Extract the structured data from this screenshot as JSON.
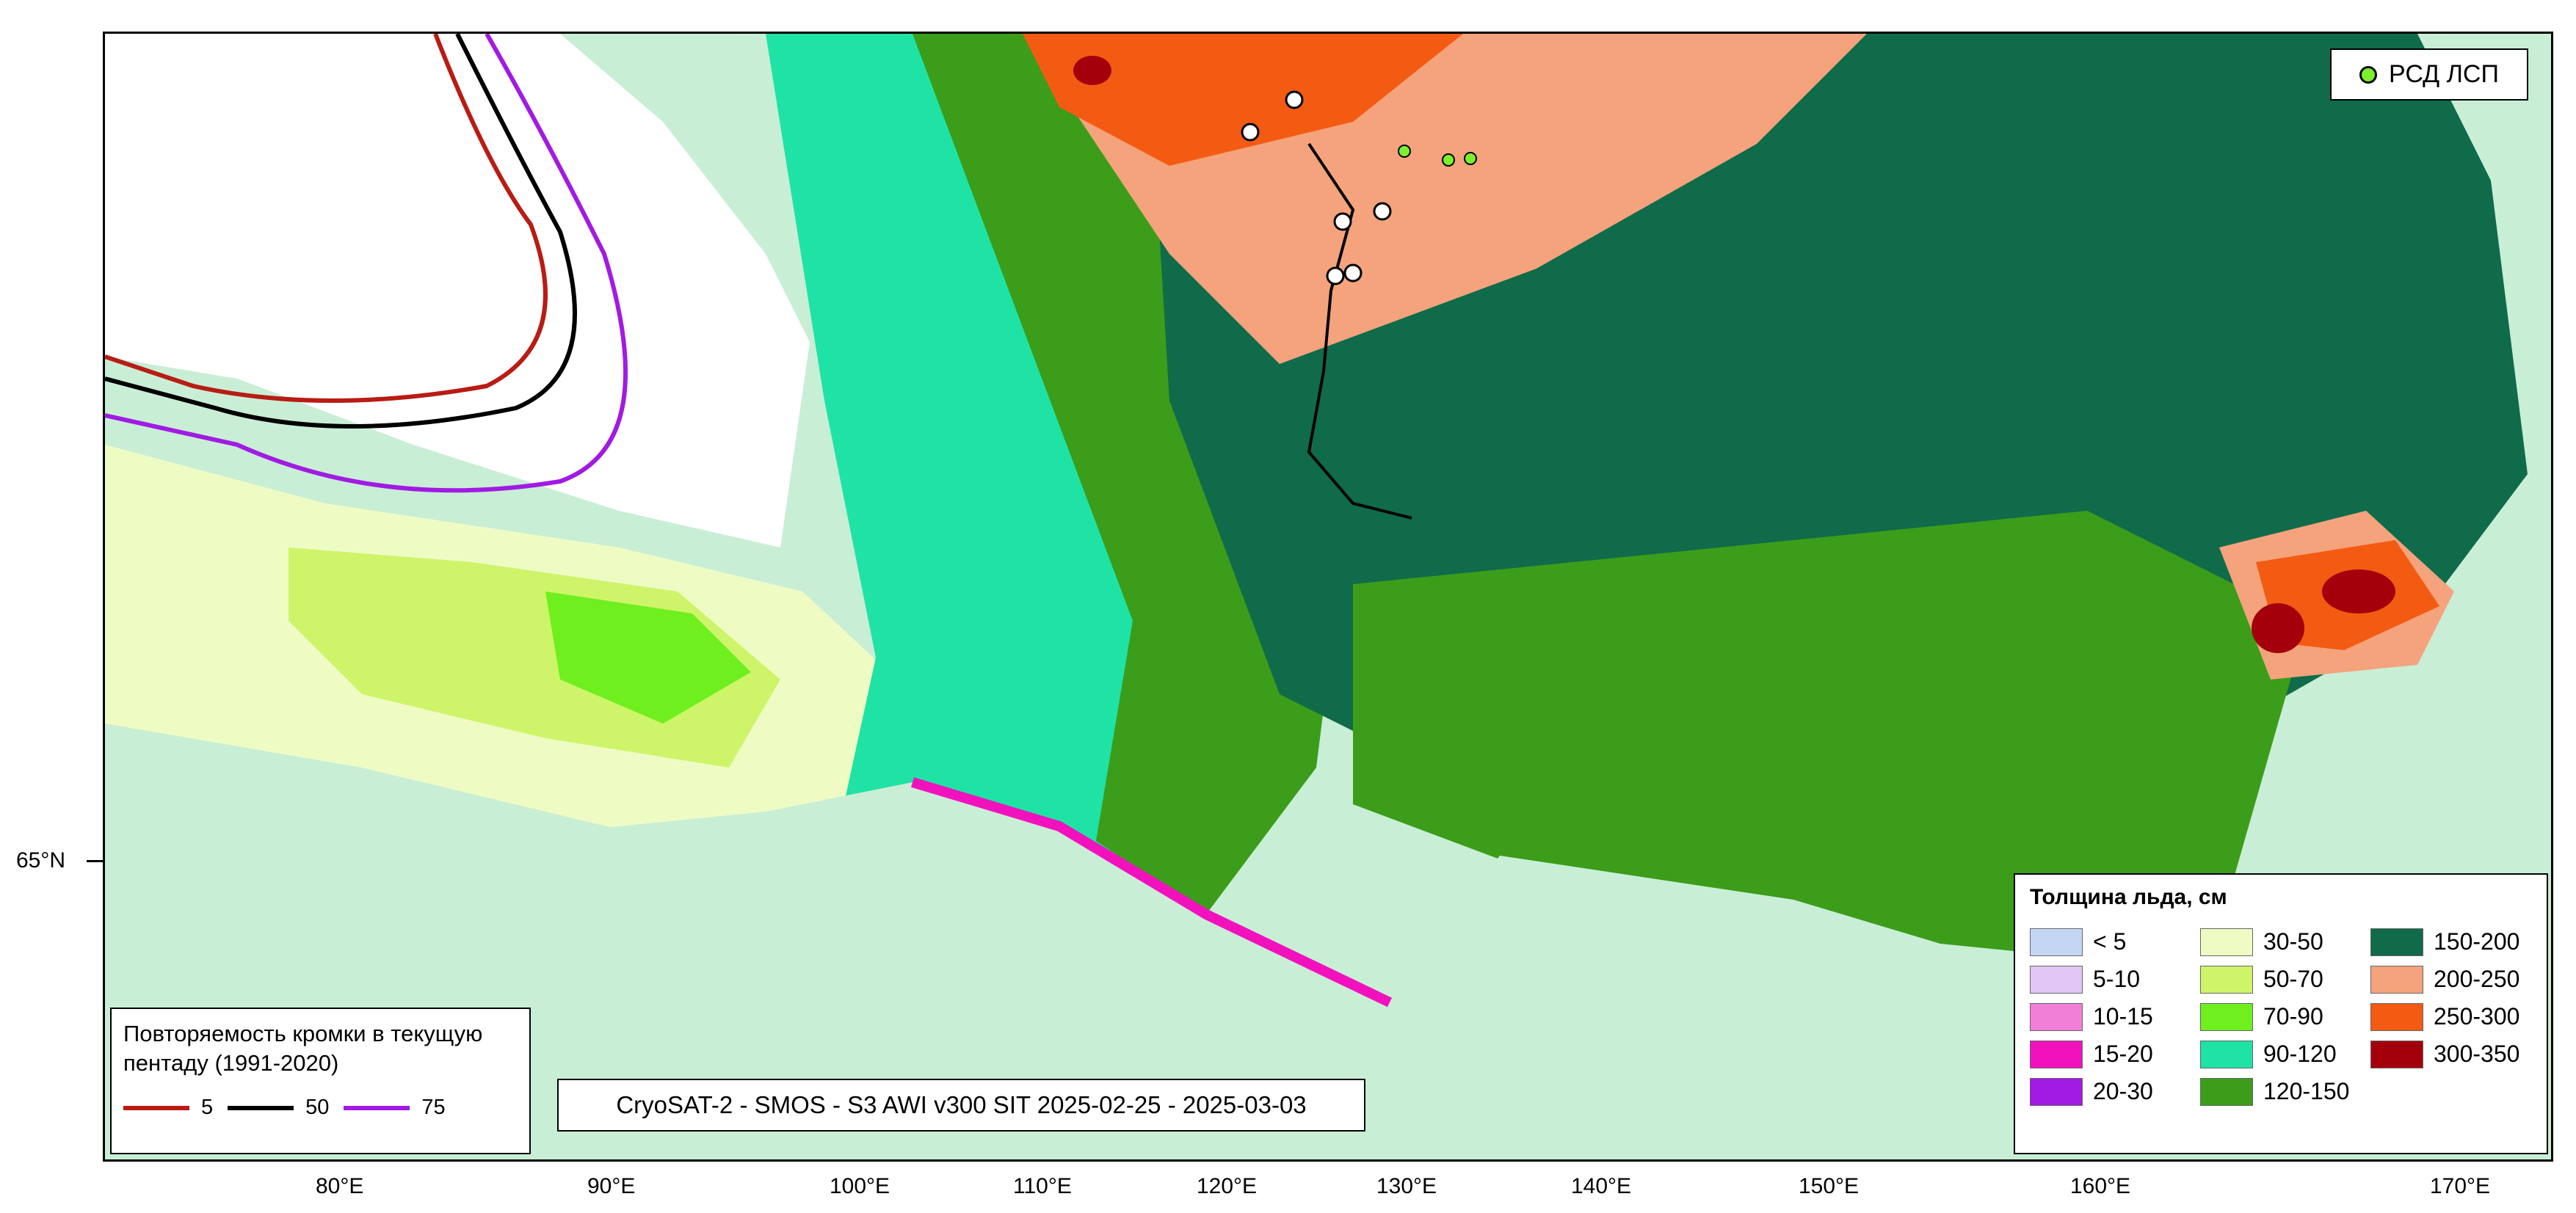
{
  "map": {
    "lon_ticks": [
      "80°E",
      "90°E",
      "100°E",
      "110°E",
      "120°E",
      "130°E",
      "140°E",
      "150°E",
      "160°E",
      "170°E"
    ],
    "lat_ticks": [
      "65°N"
    ]
  },
  "station_legend": {
    "label": "РСД ЛСП",
    "icon": "green-circle-marker",
    "color": "#7df02d"
  },
  "product_caption": "CryoSAT-2 - SMOS - S3 AWI v300 SIT 2025-02-25 - 2025-03-03",
  "ice_legend": {
    "title": "Толщина льда, см",
    "classes": [
      {
        "label": "< 5",
        "color": "#c5d6f5"
      },
      {
        "label": "30-50",
        "color": "#eefcc4"
      },
      {
        "label": "150-200",
        "color": "#0f6b4a"
      },
      {
        "label": "5-10",
        "color": "#e2c6f6"
      },
      {
        "label": "50-70",
        "color": "#cef56a"
      },
      {
        "label": "200-250",
        "color": "#f4a37c"
      },
      {
        "label": "10-15",
        "color": "#f27fd7"
      },
      {
        "label": "70-90",
        "color": "#6fef1e"
      },
      {
        "label": "250-300",
        "color": "#f45b12"
      },
      {
        "label": "15-20",
        "color": "#f112be"
      },
      {
        "label": "90-120",
        "color": "#1fe3a4"
      },
      {
        "label": "300-350",
        "color": "#a4000c"
      },
      {
        "label": "20-30",
        "color": "#a11be2"
      },
      {
        "label": "120-150",
        "color": "#3b9d1a"
      }
    ]
  },
  "edge_legend": {
    "title": "Повторяемость кромки в текущую пентаду (1991-2020)",
    "items": [
      {
        "label": "5",
        "color": "#b81c14"
      },
      {
        "label": "50",
        "color": "#000000"
      },
      {
        "label": "75",
        "color": "#a11be2"
      }
    ]
  },
  "colors": {
    "land": "#c9eed6",
    "open_water": "#ffffff",
    "frame": "#000000"
  }
}
